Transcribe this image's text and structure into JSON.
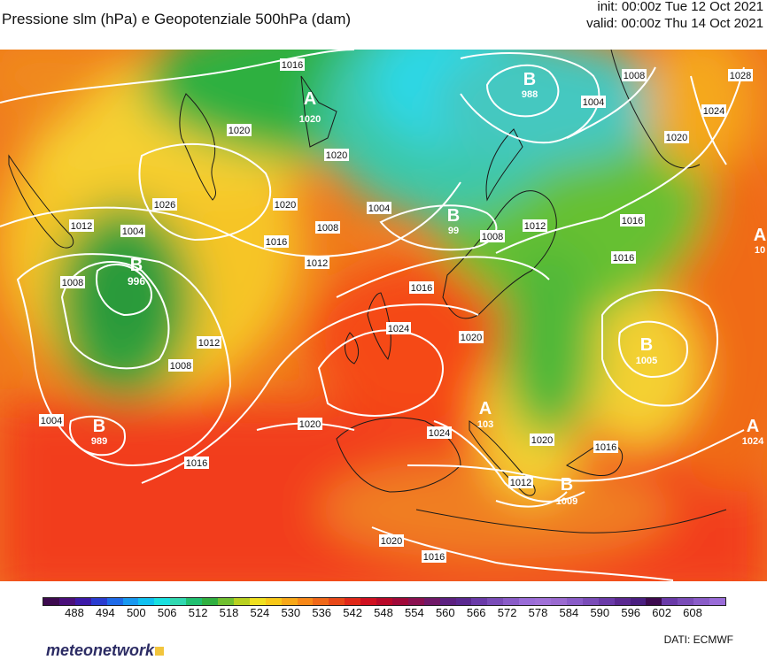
{
  "header": {
    "title": "Pressione slm (hPa) e Geopotenziale 500hPa (dam)",
    "init": "init: 00:00z Tue 12 Oct 2021",
    "valid": "valid: 00:00z Thu 14 Oct 2021"
  },
  "map": {
    "isobar_labels": [
      "1016",
      "1020",
      "1026",
      "1020",
      "1004",
      "1008",
      "1012",
      "1016",
      "1020",
      "1004",
      "1008",
      "1012",
      "1016",
      "1024",
      "1020",
      "1008",
      "1012",
      "1004",
      "1008",
      "1020",
      "1024",
      "1028",
      "1016",
      "1016",
      "1012",
      "1008",
      "1004",
      "1016",
      "1020",
      "1024",
      "1020",
      "1012",
      "1016",
      "1020",
      "1016",
      "1020",
      "1016"
    ],
    "centers": [
      {
        "letter": "A",
        "value": "1020"
      },
      {
        "letter": "B",
        "value": "988"
      },
      {
        "letter": "B",
        "value": "99"
      },
      {
        "letter": "B",
        "value": "996"
      },
      {
        "letter": "B",
        "value": "989"
      },
      {
        "letter": "B",
        "value": "1005"
      },
      {
        "letter": "A",
        "value": "103"
      },
      {
        "letter": "B",
        "value": "1009"
      },
      {
        "letter": "A",
        "value": "1024"
      },
      {
        "letter": "A",
        "value": "10"
      }
    ]
  },
  "colorbar": {
    "ticks": [
      "488",
      "494",
      "500",
      "506",
      "512",
      "518",
      "524",
      "530",
      "536",
      "542",
      "548",
      "554",
      "560",
      "566",
      "572",
      "578",
      "584",
      "590",
      "596",
      "602",
      "608"
    ],
    "colors": [
      "#3d0a4f",
      "#4a0f7a",
      "#3c1aa8",
      "#2a3cd0",
      "#1e6ae8",
      "#1898f0",
      "#10c0f0",
      "#18e0e0",
      "#30d8b0",
      "#20c070",
      "#30b040",
      "#70c030",
      "#b8d020",
      "#f0e020",
      "#f8c818",
      "#f8a818",
      "#f88818",
      "#f06818",
      "#e84818",
      "#e02818",
      "#d01020",
      "#b80828",
      "#a00838",
      "#8a1050",
      "#701868",
      "#5c2080",
      "#5a2890",
      "#6a3aa8",
      "#7a4cb8",
      "#8a5cc8",
      "#9a6cd8",
      "#a070d8",
      "#9a6ad0",
      "#8a5cc8",
      "#7a4cb8",
      "#6a3aa8",
      "#5a2890",
      "#4a1f80",
      "#3d0a4f",
      "#6a3aa8",
      "#7a4cb8",
      "#8a5cc8",
      "#9a6cd8"
    ]
  },
  "footer": {
    "logo": "meteonetwork",
    "credit": "DATI:  ECMWF"
  }
}
